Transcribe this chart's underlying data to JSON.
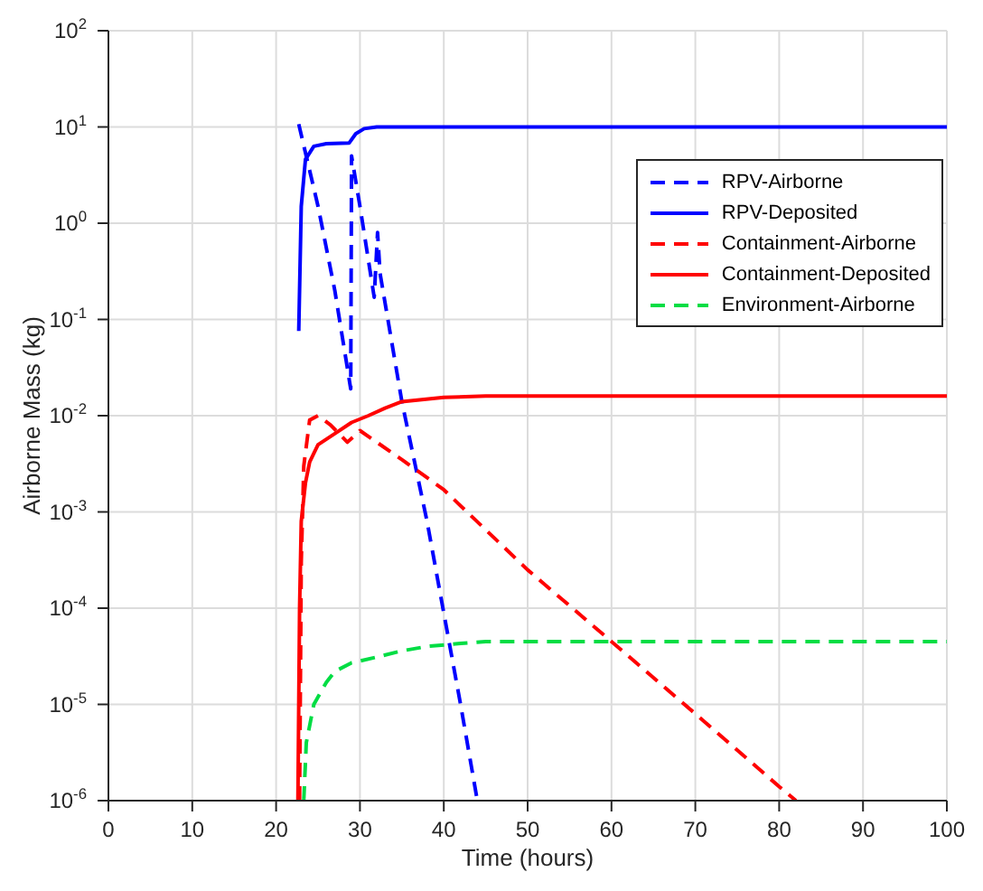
{
  "chart_data": {
    "type": "line",
    "xlabel": "Time (hours)",
    "ylabel": "Airborne Mass (kg)",
    "log": "y",
    "grid": true,
    "legend": "top right",
    "marker": "none",
    "xlim": [
      0,
      100
    ],
    "xticks": [
      0,
      10,
      20,
      30,
      40,
      50,
      60,
      70,
      80,
      90,
      100
    ],
    "ylim": [
      1e-06,
      100
    ],
    "yticks": [
      {
        "value": 1e-06,
        "label": "10$^{-6}$"
      },
      {
        "value": 1e-05,
        "label": "10$^{-5}$"
      },
      {
        "value": 0.0001,
        "label": "10$^{-4}$"
      },
      {
        "value": 0.001,
        "label": "10$^{-3}$"
      },
      {
        "value": 0.01,
        "label": "10$^{-2}$"
      },
      {
        "value": 0.1,
        "label": "10$^{-1}$"
      },
      {
        "value": 1,
        "label": "10$^{0}$"
      },
      {
        "value": 10,
        "label": "10$^{1}$"
      },
      {
        "value": 100,
        "label": "10$^{2}$"
      }
    ],
    "series": [
      {
        "name": "RPV-Airborne",
        "color": "#0000ff",
        "line_style": "dashed",
        "x": [
          22.7,
          25,
          27,
          28.9,
          29,
          30,
          31.7,
          32.1,
          32.4,
          35,
          38,
          40,
          42,
          44
        ],
        "values": [
          10.7,
          1.5,
          0.2,
          0.019,
          5,
          1.5,
          0.17,
          0.8,
          0.3,
          0.014,
          0.0008,
          8.9e-05,
          1e-05,
          1e-06
        ]
      },
      {
        "name": "RPV-Deposited",
        "color": "#0000ff",
        "line_style": "solid",
        "x": [
          22.7,
          23,
          23.5,
          24.5,
          26,
          28.7,
          29.5,
          30.5,
          32,
          40,
          60,
          100
        ],
        "values": [
          0.076,
          1.5,
          4.6,
          6.3,
          6.7,
          6.8,
          8.5,
          9.6,
          10,
          10,
          10,
          10
        ]
      },
      {
        "name": "Containment-Airborne",
        "color": "#ff0000",
        "line_style": "dashed",
        "x": [
          22.8,
          23,
          23.3,
          24,
          25,
          26.5,
          28.5,
          30,
          35,
          40,
          50,
          60,
          70,
          80,
          82
        ],
        "values": [
          1e-06,
          0.0003,
          0.003,
          0.009,
          0.01,
          0.008,
          0.0053,
          0.007,
          0.0035,
          0.0017,
          0.00025,
          4.5e-05,
          8e-06,
          1.4e-06,
          1e-06
        ]
      },
      {
        "name": "Containment-Deposited",
        "color": "#ff0000",
        "line_style": "solid",
        "x": [
          22.6,
          22.8,
          23,
          23.5,
          24,
          25,
          27,
          29,
          31,
          33,
          35,
          40,
          45,
          60,
          100
        ],
        "values": [
          1e-06,
          0.0001,
          0.0008,
          0.002,
          0.0033,
          0.005,
          0.0065,
          0.0085,
          0.01,
          0.012,
          0.014,
          0.0155,
          0.016,
          0.016,
          0.016
        ]
      },
      {
        "name": "Environment-Airborne",
        "color": "#00dd44",
        "line_style": "dashed",
        "x": [
          23.3,
          23.6,
          24.5,
          26,
          27,
          29,
          32,
          35,
          38,
          42,
          45,
          60,
          100
        ],
        "values": [
          1e-06,
          4e-06,
          1e-05,
          1.7e-05,
          2.2e-05,
          2.7e-05,
          3.1e-05,
          3.6e-05,
          4e-05,
          4.3e-05,
          4.5e-05,
          4.5e-05,
          4.5e-05
        ]
      }
    ]
  }
}
